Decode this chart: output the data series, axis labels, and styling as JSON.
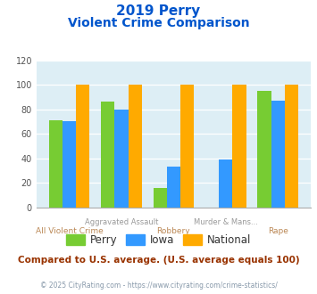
{
  "title_line1": "2019 Perry",
  "title_line2": "Violent Crime Comparison",
  "categories": [
    "All Violent Crime",
    "Aggravated Assault",
    "Robbery",
    "Murder & Mans...",
    "Rape"
  ],
  "perry": [
    71,
    86,
    16,
    0,
    95
  ],
  "iowa": [
    70,
    80,
    33,
    39,
    87
  ],
  "national": [
    100,
    100,
    100,
    100,
    100
  ],
  "perry_color": "#77cc33",
  "iowa_color": "#3399ff",
  "national_color": "#ffaa00",
  "bg_color": "#ddeef5",
  "ylim": [
    0,
    120
  ],
  "yticks": [
    0,
    20,
    40,
    60,
    80,
    100,
    120
  ],
  "footer_text": "Compared to U.S. average. (U.S. average equals 100)",
  "copyright_text": "© 2025 CityRating.com - https://www.cityrating.com/crime-statistics/",
  "title_color": "#0055cc",
  "footer_color": "#993300",
  "copyright_color": "#8899aa",
  "upper_xlabel_color": "#999999",
  "lower_xlabel_color": "#bb8855"
}
